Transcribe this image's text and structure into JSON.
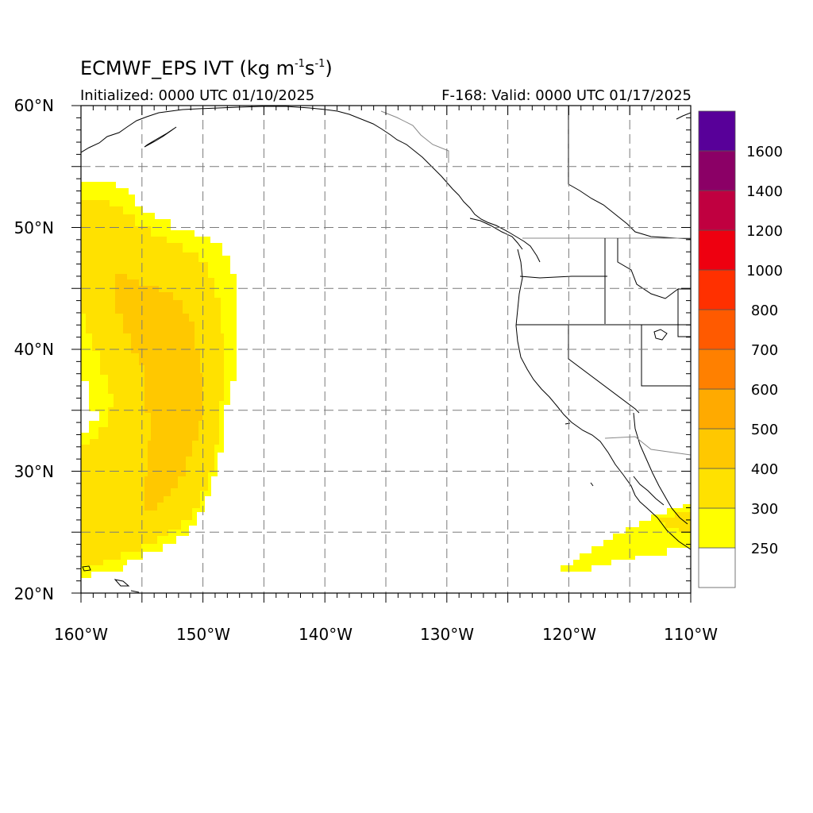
{
  "header": {
    "title_main": "ECMWF_EPS IVT (kg m",
    "title_sup1": "-1",
    "title_mid": "s",
    "title_sup2": "-1",
    "title_end": ")",
    "initialized": "Initialized: 0000 UTC 01/10/2025",
    "valid": "F-168: Valid: 0000 UTC 01/17/2025"
  },
  "axes": {
    "lon_labels": [
      "160°W",
      "150°W",
      "140°W",
      "130°W",
      "120°W",
      "110°W"
    ],
    "lat_labels": [
      "60°N",
      "50°N",
      "40°N",
      "30°N",
      "20°N"
    ],
    "lon_range": [
      -160,
      -110
    ],
    "lat_range": [
      20,
      60
    ],
    "grid": "dashed every 5°"
  },
  "colorbar": {
    "labels": [
      "250",
      "300",
      "400",
      "500",
      "600",
      "700",
      "800",
      "1000",
      "1200",
      "1400",
      "1600"
    ],
    "colors": [
      "#ffffff",
      "#ffff00",
      "#ffe100",
      "#ffc800",
      "#ffaa00",
      "#ff8000",
      "#ff5a00",
      "#ff3000",
      "#ee0010",
      "#c00040",
      "#8b0066",
      "#580099"
    ]
  },
  "chart_data": {
    "type": "heatmap",
    "variable": "IVT",
    "units": "kg m-1 s-1",
    "levels": [
      250,
      300,
      400,
      500,
      600,
      700,
      800,
      1000,
      1200,
      1400,
      1600
    ],
    "regions": [
      {
        "feature": "atmospheric river",
        "lon_range": [
          -160,
          -147.5
        ],
        "lat_range": [
          21.5,
          53.5
        ],
        "max_level": "400-500"
      },
      {
        "feature": "subtropical plume",
        "lon_range": [
          -120.5,
          -110
        ],
        "lat_range": [
          22,
          27
        ],
        "max_level": "250-400"
      }
    ]
  }
}
